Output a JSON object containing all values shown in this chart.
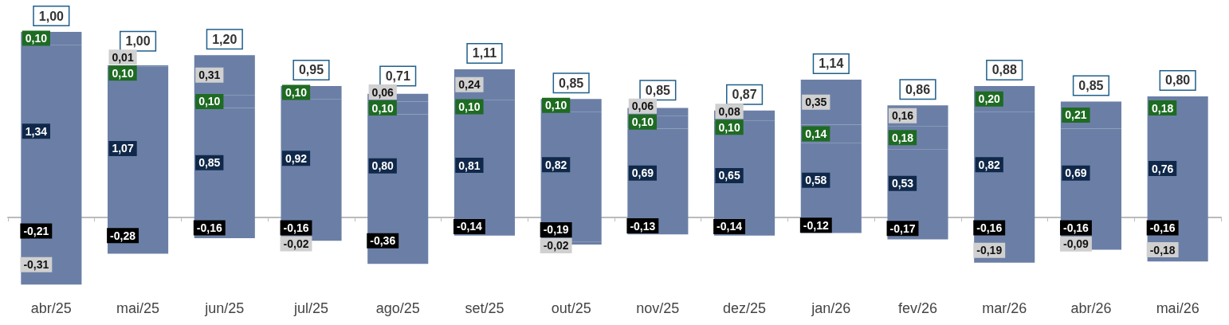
{
  "chart_data": {
    "type": "bar",
    "stacked": true,
    "categories": [
      "abr/25",
      "mai/25",
      "jun/25",
      "jul/25",
      "ago/25",
      "set/25",
      "out/25",
      "nov/25",
      "dez/25",
      "jan/26",
      "fev/26",
      "mar/26",
      "abr/26",
      "mai/26"
    ],
    "series": [
      {
        "color": "#6b7fa6",
        "values": [
          1.34,
          1.07,
          0.85,
          0.92,
          0.8,
          0.81,
          0.82,
          0.69,
          0.65,
          0.58,
          0.53,
          0.82,
          0.69,
          0.76
        ],
        "value_labels": [
          "1,34",
          "1,07",
          "0,85",
          "0,92",
          "0,80",
          "0,81",
          "0,82",
          "0,69",
          "0,65",
          "0,58",
          "0,53",
          "0,82",
          "0,69",
          "0,76"
        ]
      },
      {
        "color": "#6b7fa6",
        "values": [
          0.1,
          0.1,
          0.1,
          0.1,
          0.1,
          0.1,
          0.1,
          0.1,
          0.1,
          0.14,
          0.18,
          0.2,
          0.21,
          0.18
        ],
        "value_labels": [
          "0,10",
          "0,10",
          "0,10",
          "0,10",
          "0,10",
          "0,10",
          "0,10",
          "0,10",
          "0,10",
          "0,14",
          "0,18",
          "0,20",
          "0,21",
          "0,18"
        ]
      },
      {
        "color": "#6b7fa6",
        "values": [
          null,
          0.01,
          0.31,
          null,
          0.06,
          0.24,
          null,
          0.06,
          0.08,
          0.35,
          0.16,
          null,
          null,
          null
        ],
        "value_labels": [
          null,
          "0,01",
          "0,31",
          null,
          "0,06",
          "0,24",
          null,
          "0,06",
          "0,08",
          "0,35",
          "0,16",
          null,
          null,
          null
        ]
      },
      {
        "color": "#6b7fa6",
        "values": [
          -0.21,
          -0.28,
          -0.16,
          -0.16,
          -0.36,
          -0.14,
          -0.19,
          -0.13,
          -0.14,
          -0.12,
          -0.17,
          -0.16,
          -0.16,
          -0.16
        ],
        "value_labels": [
          "-0,21",
          "-0,28",
          "-0,16",
          "-0,16",
          "-0,36",
          "-0,14",
          "-0,19",
          "-0,13",
          "-0,14",
          "-0,12",
          "-0,17",
          "-0,16",
          "-0,16",
          "-0,16"
        ]
      },
      {
        "color": "#6b7fa6",
        "values": [
          -0.31,
          null,
          null,
          -0.02,
          null,
          null,
          -0.02,
          null,
          null,
          null,
          null,
          -0.19,
          -0.09,
          -0.18
        ],
        "value_labels": [
          "-0,31",
          null,
          null,
          "-0,02",
          null,
          null,
          "-0,02",
          null,
          null,
          null,
          null,
          "-0,19",
          "-0,09",
          "-0,18"
        ]
      }
    ],
    "annotations": [
      "1,00",
      "1,00",
      "1,20",
      "0,95",
      "0,71",
      "1,11",
      "0,85",
      "0,85",
      "0,87",
      "1,14",
      "0,86",
      "0,88",
      "0,85",
      "0,80"
    ]
  }
}
